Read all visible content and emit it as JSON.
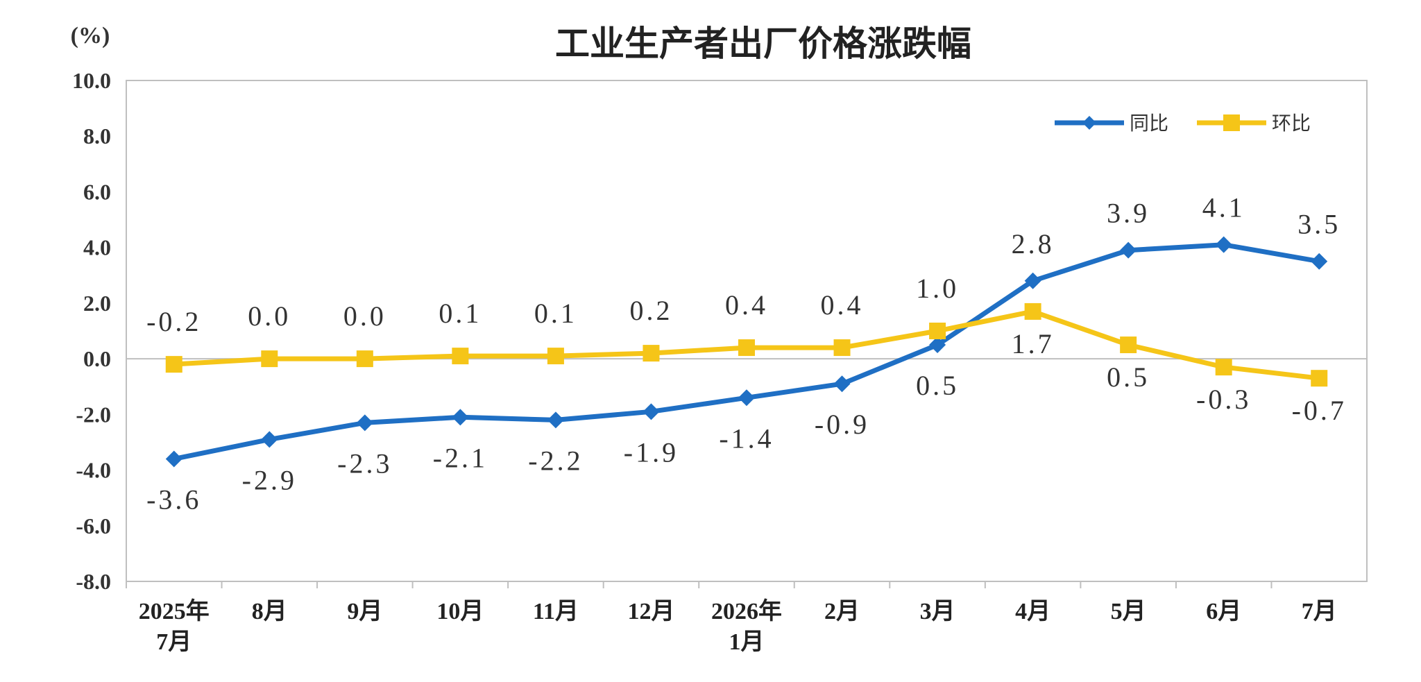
{
  "chart_data": {
    "type": "line",
    "title": "工业生产者出厂价格涨跌幅",
    "unit_label": "(%)",
    "ylim": [
      -8.0,
      10.0
    ],
    "yticks": [
      "10.0",
      "8.0",
      "6.0",
      "4.0",
      "2.0",
      "0.0",
      "-2.0",
      "-4.0",
      "-6.0",
      "-8.0"
    ],
    "ytick_values": [
      10,
      8,
      6,
      4,
      2,
      0,
      -2,
      -4,
      -6,
      -8
    ],
    "categories": [
      [
        "2025年",
        "7月"
      ],
      [
        "8月"
      ],
      [
        "9月"
      ],
      [
        "10月"
      ],
      [
        "11月"
      ],
      [
        "12月"
      ],
      [
        "2026年",
        "1月"
      ],
      [
        "2月"
      ],
      [
        "3月"
      ],
      [
        "4月"
      ],
      [
        "5月"
      ],
      [
        "6月"
      ],
      [
        "7月"
      ]
    ],
    "legend_position": "top-right",
    "grid": false,
    "series": [
      {
        "name": "同比",
        "color": "#1f6fc4",
        "marker": "diamond",
        "values": [
          -3.6,
          -2.9,
          -2.3,
          -2.1,
          -2.2,
          -1.9,
          -1.4,
          -0.9,
          0.5,
          2.8,
          3.9,
          4.1,
          3.5
        ],
        "labels": [
          "-3.6",
          "-2.9",
          "-2.3",
          "-2.1",
          "-2.2",
          "-1.9",
          "-1.4",
          "-0.9",
          "0.5",
          "2.8",
          "3.9",
          "4.1",
          "3.5"
        ]
      },
      {
        "name": "环比",
        "color": "#f5c518",
        "marker": "square",
        "values": [
          -0.2,
          0.0,
          0.0,
          0.1,
          0.1,
          0.2,
          0.4,
          0.4,
          1.0,
          1.7,
          0.5,
          -0.3,
          -0.7
        ],
        "labels": [
          "-0.2",
          "0.0",
          "0.0",
          "0.1",
          "0.1",
          "0.2",
          "0.4",
          "0.4",
          "1.0",
          "1.7",
          "0.5",
          "-0.3",
          "-0.7"
        ]
      }
    ]
  }
}
